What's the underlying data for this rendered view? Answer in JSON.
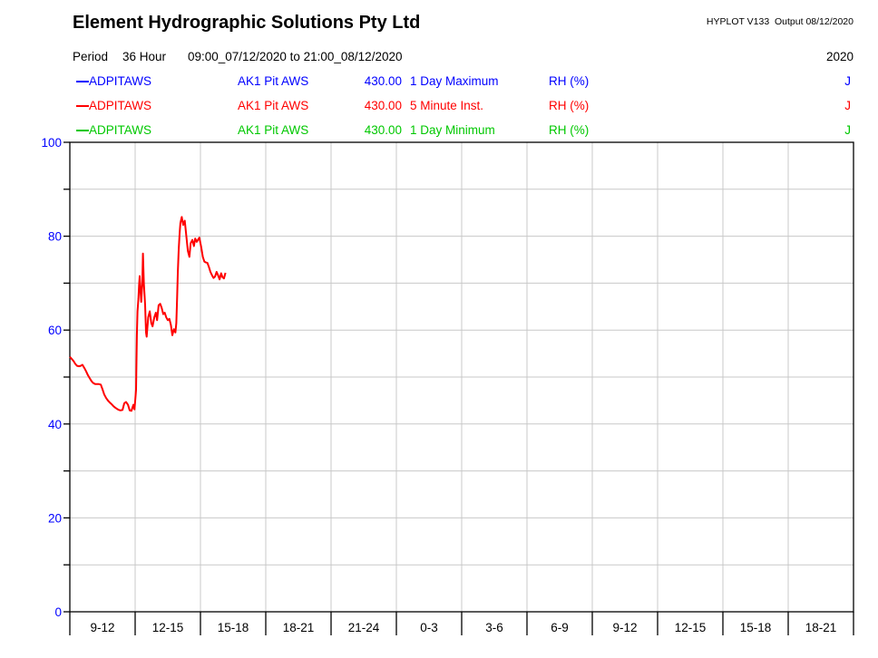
{
  "header": {
    "title": "Element Hydrographic Solutions Pty Ltd",
    "app_info": "HYPLOT V133  Output 08/12/2020",
    "period_label": "Period",
    "period_duration": "36 Hour",
    "period_range": "09:00_07/12/2020 to 21:00_08/12/2020",
    "period_year": "2020"
  },
  "legend": {
    "rows": [
      {
        "station": "ADPITAWS",
        "site": "AK1 Pit AWS",
        "elevation": "430.00",
        "trace": "1 Day Maximum",
        "variable": "RH (%)",
        "quality": "J",
        "color": "#0000ff"
      },
      {
        "station": "ADPITAWS",
        "site": "AK1 Pit AWS",
        "elevation": "430.00",
        "trace": "5 Minute Inst.",
        "variable": "RH (%)",
        "quality": "J",
        "color": "#ff0000"
      },
      {
        "station": "ADPITAWS",
        "site": "AK1 Pit AWS",
        "elevation": "430.00",
        "trace": "1 Day Minimum",
        "variable": "RH (%)",
        "quality": "J",
        "color": "#00c800"
      }
    ]
  },
  "chart_data": {
    "type": "line",
    "title": "",
    "xlabel": "",
    "ylabel": "RH (%)",
    "x_unit": "hours since 09:00 07/12/2020, 3-hour bins",
    "xlim": [
      0,
      36
    ],
    "ylim": [
      0,
      100
    ],
    "grid": true,
    "y_ticks": [
      0,
      10,
      20,
      30,
      40,
      50,
      60,
      70,
      80,
      90,
      100
    ],
    "y_labeled_ticks": [
      0,
      20,
      40,
      60,
      80,
      100
    ],
    "x_categories": [
      "9-12",
      "12-15",
      "15-18",
      "18-21",
      "21-24",
      "0-3",
      "3-6",
      "6-9",
      "9-12",
      "12-15",
      "15-18",
      "18-21"
    ],
    "series": [
      {
        "name": "1 Day Maximum",
        "color": "#0000ff",
        "points": []
      },
      {
        "name": "5 Minute Inst.",
        "color": "#ff0000",
        "points": [
          [
            0.0,
            54.3
          ],
          [
            0.08,
            53.9
          ],
          [
            0.17,
            53.4
          ],
          [
            0.25,
            52.8
          ],
          [
            0.33,
            52.4
          ],
          [
            0.42,
            52.3
          ],
          [
            0.5,
            52.4
          ],
          [
            0.58,
            52.6
          ],
          [
            0.67,
            51.9
          ],
          [
            0.75,
            51.2
          ],
          [
            0.83,
            50.4
          ],
          [
            0.92,
            49.7
          ],
          [
            1.0,
            49.1
          ],
          [
            1.08,
            48.7
          ],
          [
            1.17,
            48.5
          ],
          [
            1.25,
            48.5
          ],
          [
            1.33,
            48.5
          ],
          [
            1.42,
            48.4
          ],
          [
            1.5,
            47.4
          ],
          [
            1.58,
            46.3
          ],
          [
            1.67,
            45.5
          ],
          [
            1.75,
            45.0
          ],
          [
            1.83,
            44.6
          ],
          [
            1.92,
            44.2
          ],
          [
            2.0,
            43.8
          ],
          [
            2.08,
            43.5
          ],
          [
            2.17,
            43.2
          ],
          [
            2.25,
            43.0
          ],
          [
            2.33,
            42.9
          ],
          [
            2.42,
            43.0
          ],
          [
            2.5,
            44.4
          ],
          [
            2.58,
            44.7
          ],
          [
            2.67,
            44.1
          ],
          [
            2.75,
            42.9
          ],
          [
            2.83,
            42.8
          ],
          [
            2.92,
            44.1
          ],
          [
            2.97,
            43.1
          ],
          [
            3.04,
            47.3
          ],
          [
            3.08,
            58.9
          ],
          [
            3.11,
            64.0
          ],
          [
            3.15,
            66.6
          ],
          [
            3.18,
            69.5
          ],
          [
            3.21,
            71.5
          ],
          [
            3.25,
            67.9
          ],
          [
            3.28,
            66.0
          ],
          [
            3.33,
            70.0
          ],
          [
            3.36,
            76.3
          ],
          [
            3.4,
            70.0
          ],
          [
            3.46,
            65.3
          ],
          [
            3.5,
            59.5
          ],
          [
            3.53,
            58.6
          ],
          [
            3.6,
            62.7
          ],
          [
            3.67,
            64.0
          ],
          [
            3.74,
            61.5
          ],
          [
            3.8,
            60.8
          ],
          [
            3.88,
            62.7
          ],
          [
            3.95,
            63.7
          ],
          [
            4.01,
            62.1
          ],
          [
            4.08,
            65.3
          ],
          [
            4.15,
            65.6
          ],
          [
            4.22,
            64.7
          ],
          [
            4.29,
            63.4
          ],
          [
            4.36,
            63.7
          ],
          [
            4.43,
            62.7
          ],
          [
            4.5,
            62.1
          ],
          [
            4.57,
            62.4
          ],
          [
            4.64,
            61.1
          ],
          [
            4.71,
            58.9
          ],
          [
            4.78,
            60.2
          ],
          [
            4.85,
            59.5
          ],
          [
            4.89,
            61.5
          ],
          [
            4.93,
            67.0
          ],
          [
            4.96,
            72.0
          ],
          [
            5.0,
            77.0
          ],
          [
            5.04,
            80.5
          ],
          [
            5.08,
            82.8
          ],
          [
            5.14,
            84.1
          ],
          [
            5.21,
            82.4
          ],
          [
            5.28,
            83.3
          ],
          [
            5.35,
            80.1
          ],
          [
            5.42,
            76.9
          ],
          [
            5.49,
            75.6
          ],
          [
            5.55,
            78.5
          ],
          [
            5.63,
            79.2
          ],
          [
            5.7,
            77.9
          ],
          [
            5.76,
            79.5
          ],
          [
            5.83,
            78.8
          ],
          [
            5.95,
            79.7
          ],
          [
            6.04,
            77.5
          ],
          [
            6.11,
            75.6
          ],
          [
            6.18,
            74.6
          ],
          [
            6.25,
            74.4
          ],
          [
            6.32,
            74.3
          ],
          [
            6.39,
            73.4
          ],
          [
            6.46,
            72.4
          ],
          [
            6.53,
            71.7
          ],
          [
            6.6,
            71.1
          ],
          [
            6.67,
            71.4
          ],
          [
            6.74,
            72.4
          ],
          [
            6.81,
            71.7
          ],
          [
            6.88,
            70.8
          ],
          [
            6.95,
            72.1
          ],
          [
            7.01,
            71.3
          ],
          [
            7.08,
            71.0
          ],
          [
            7.15,
            72.2
          ]
        ]
      },
      {
        "name": "1 Day Minimum",
        "color": "#00c800",
        "points": []
      }
    ]
  },
  "colors": {
    "axis": "#000000",
    "grid": "#c8c8c8",
    "y_tick_label": "#0000ff",
    "x_tick_label": "#000000"
  }
}
